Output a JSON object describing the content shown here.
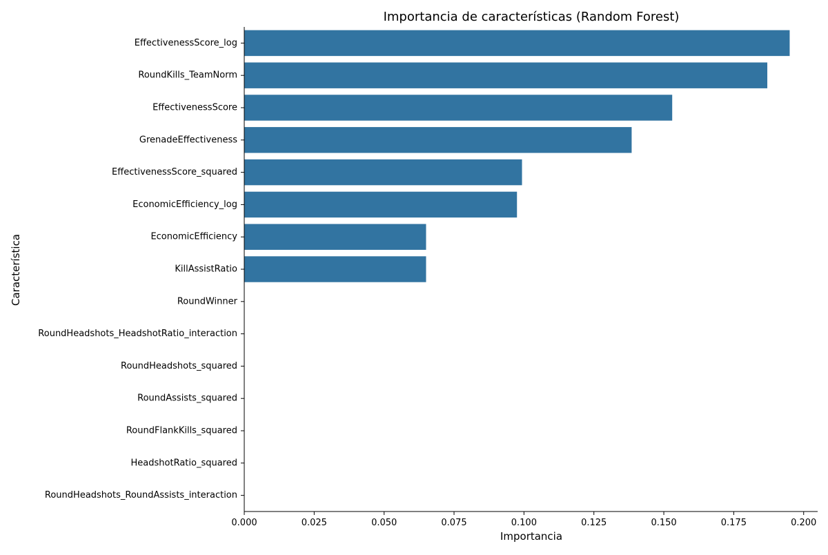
{
  "chart_data": {
    "type": "bar",
    "orientation": "horizontal",
    "title": "Importancia de características (Random Forest)",
    "xlabel": "Importancia",
    "ylabel": "Característica",
    "xlim": [
      0,
      0.205
    ],
    "xticks": [
      "0.000",
      "0.025",
      "0.050",
      "0.075",
      "0.100",
      "0.125",
      "0.150",
      "0.175",
      "0.200"
    ],
    "grid": false,
    "legend": "none",
    "color": "#3274a1",
    "categories": [
      "EffectivenessScore_log",
      "RoundKills_TeamNorm",
      "EffectivenessScore",
      "GrenadeEffectiveness",
      "EffectivenessScore_squared",
      "EconomicEfficiency_log",
      "EconomicEfficiency",
      "KillAssistRatio",
      "RoundWinner",
      "RoundHeadshots_HeadshotRatio_interaction",
      "RoundHeadshots_squared",
      "RoundAssists_squared",
      "RoundFlankKills_squared",
      "HeadshotRatio_squared",
      "RoundHeadshots_RoundAssists_interaction"
    ],
    "values": [
      0.195,
      0.187,
      0.153,
      0.1385,
      0.0993,
      0.0975,
      0.065,
      0.065,
      0,
      0,
      0,
      0,
      0,
      0,
      0
    ]
  }
}
